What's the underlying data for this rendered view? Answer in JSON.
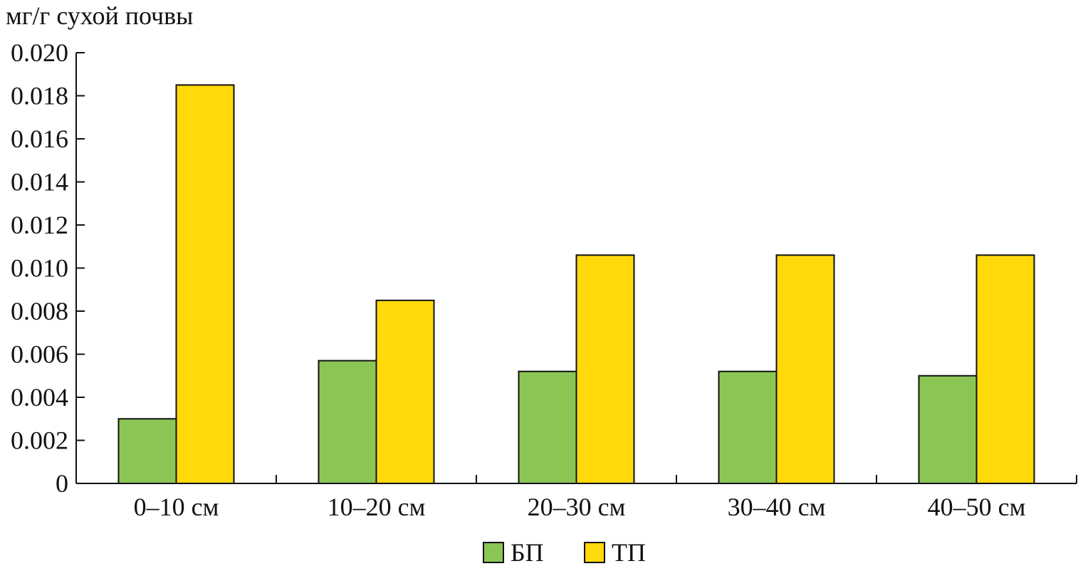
{
  "chart_data": {
    "type": "bar",
    "title": "",
    "ylabel": "мг/г сухой почвы",
    "xlabel": "",
    "categories": [
      "0–10 см",
      "10–20 см",
      "20–30 см",
      "30–40 см",
      "40–50 см"
    ],
    "series": [
      {
        "name": "БП",
        "color": "#8bc655",
        "values": [
          0.003,
          0.0057,
          0.0052,
          0.0052,
          0.005
        ]
      },
      {
        "name": "ТП",
        "color": "#ffd90a",
        "values": [
          0.0185,
          0.0085,
          0.0106,
          0.0106,
          0.0106
        ]
      }
    ],
    "ylim": [
      0,
      0.02
    ],
    "yticks": [
      "0",
      "0.002",
      "0.004",
      "0.006",
      "0.008",
      "0.010",
      "0.012",
      "0.014",
      "0.016",
      "0.018",
      "0.020"
    ],
    "grid": false,
    "legend_position": "bottom-center"
  }
}
